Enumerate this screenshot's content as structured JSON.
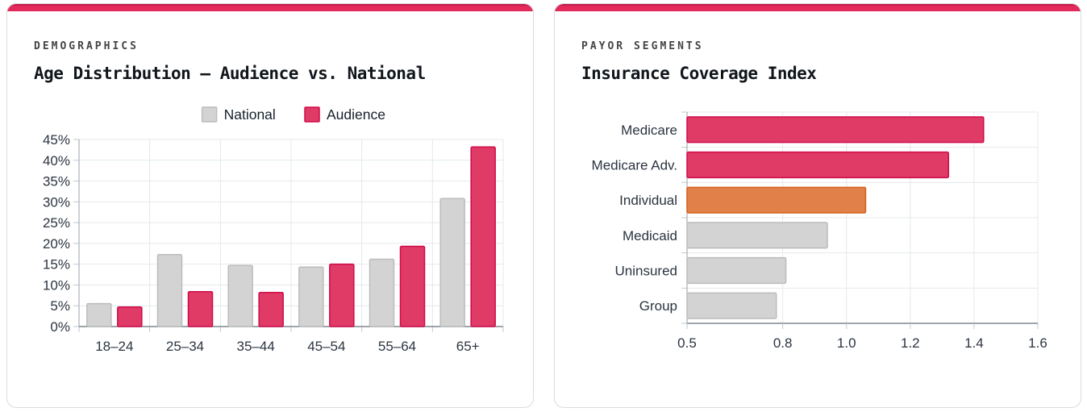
{
  "theme": {
    "accent_top": "#c41a48",
    "accent_main": "#e22a5b",
    "card_border": "#d8dcdf",
    "grid_color": "#e4e9ec",
    "axis_color": "#9aa1a8",
    "axis_strong": "#7e8890",
    "tick_mark_color": "#c2c9ce",
    "tick_text_color": "#2b3440",
    "eyebrow_color": "#454545",
    "title_color": "#10151a"
  },
  "cards": [
    {
      "eyebrow": "DEMOGRAPHICS",
      "title": "Age Distribution — Audience vs. National"
    },
    {
      "eyebrow": "PAYOR SEGMENTS",
      "title": "Insurance Coverage Index"
    }
  ],
  "chart_data": [
    {
      "type": "bar",
      "orientation": "vertical",
      "title": "Age Distribution — Audience vs. National",
      "categories": [
        "18–24",
        "25–34",
        "35–44",
        "45–54",
        "55–64",
        "65+"
      ],
      "series": [
        {
          "name": "National",
          "color": "#d3d3d3",
          "stroke": "#bcbcbc",
          "values": [
            5.5,
            17.3,
            14.7,
            14.3,
            16.2,
            30.8
          ]
        },
        {
          "name": "Audience",
          "color": "#e03a66",
          "stroke": "#cf0c4a",
          "values": [
            4.7,
            8.4,
            8.2,
            15.0,
            19.3,
            43.2
          ]
        }
      ],
      "ylim": [
        0,
        45
      ],
      "yticks": [
        0,
        5,
        10,
        15,
        20,
        25,
        30,
        35,
        40,
        45
      ],
      "ytick_labels": [
        "0%",
        "5%",
        "10%",
        "15%",
        "20%",
        "25%",
        "30%",
        "35%",
        "40%",
        "45%"
      ],
      "legend_position": "top",
      "grid": true
    },
    {
      "type": "bar",
      "orientation": "horizontal",
      "title": "Insurance Coverage Index",
      "categories": [
        "Medicare",
        "Medicare Adv.",
        "Individual",
        "Medicaid",
        "Uninsured",
        "Group"
      ],
      "values": [
        1.43,
        1.32,
        1.06,
        0.94,
        0.81,
        0.78
      ],
      "bar_colors": [
        "#e03a66",
        "#e03a66",
        "#e28049",
        "#d3d3d3",
        "#d3d3d3",
        "#d3d3d3"
      ],
      "bar_strokes": [
        "#cf0c4a",
        "#cf0c4a",
        "#d2611c",
        "#bcbcbc",
        "#bcbcbc",
        "#bcbcbc"
      ],
      "xlim": [
        0.5,
        1.6
      ],
      "xticks": [
        0.5,
        0.8,
        1.0,
        1.2,
        1.4,
        1.6
      ],
      "xtick_labels": [
        "0.5",
        "0.8",
        "1.0",
        "1.2",
        "1.4",
        "1.6"
      ],
      "grid": true
    }
  ]
}
